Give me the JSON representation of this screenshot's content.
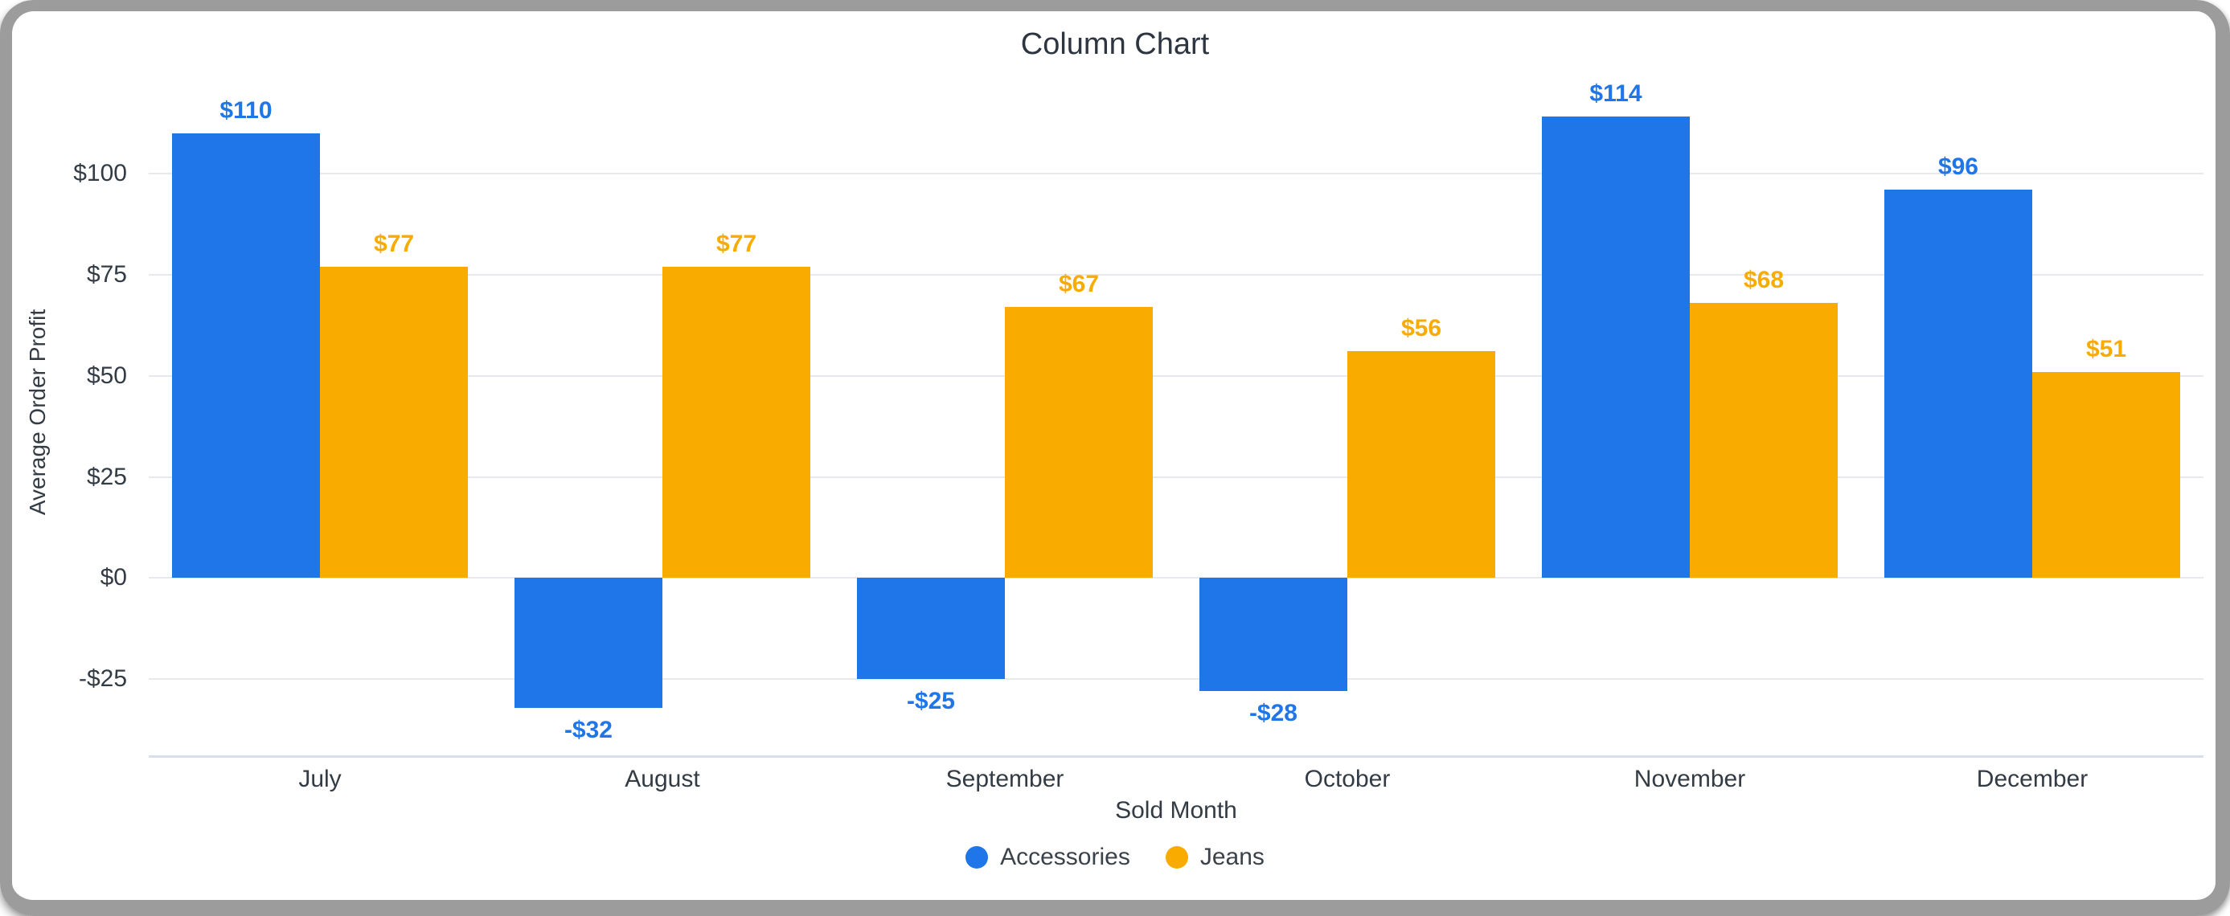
{
  "chart_data": {
    "type": "bar",
    "title": "Column Chart",
    "xlabel": "Sold Month",
    "ylabel": "Average Order Profit",
    "categories": [
      "July",
      "August",
      "September",
      "October",
      "November",
      "December"
    ],
    "series": [
      {
        "name": "Accessories",
        "color": "#1f76e9",
        "values": [
          110,
          -32,
          -25,
          -28,
          114,
          96
        ],
        "data_labels": [
          "$110",
          "-$32",
          "-$25",
          "-$28",
          "$114",
          "$96"
        ]
      },
      {
        "name": "Jeans",
        "color": "#f9ab00",
        "values": [
          77,
          77,
          67,
          56,
          68,
          51
        ],
        "data_labels": [
          "$77",
          "$77",
          "$67",
          "$56",
          "$68",
          "$51"
        ]
      }
    ],
    "y_ticks": [
      {
        "value": 100,
        "label": "$100"
      },
      {
        "value": 75,
        "label": "$75"
      },
      {
        "value": 50,
        "label": "$50"
      },
      {
        "value": 25,
        "label": "$25"
      },
      {
        "value": 0,
        "label": "$0"
      },
      {
        "value": -25,
        "label": "-$25"
      }
    ],
    "ylim": [
      -44,
      126
    ],
    "grid": true,
    "legend_position": "bottom"
  },
  "colors": {
    "accessories_bar": "#1f76e9",
    "jeans_bar": "#f9ab00",
    "gridline": "#e7e9ec",
    "axis_line": "#d9dfe9",
    "text": "#333b45",
    "frame": "#9c9c9c",
    "background": "#ffffff"
  }
}
